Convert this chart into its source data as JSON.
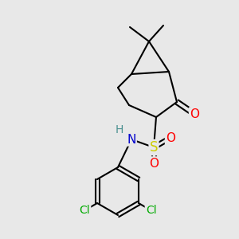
{
  "background_color": "#e8e8e8",
  "figsize": [
    3.0,
    3.0
  ],
  "dpi": 100,
  "bond_color": "#000000",
  "bond_width": 1.5,
  "atom_colors": {
    "O": "#ff0000",
    "N": "#0000cd",
    "S": "#cccc00",
    "Cl": "#00aa00",
    "H": "#4a9090",
    "C": "#000000"
  },
  "font_size": 9
}
